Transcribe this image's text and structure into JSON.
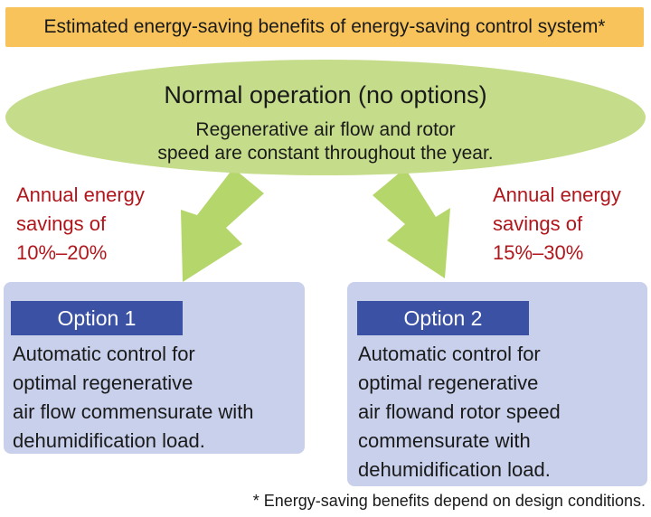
{
  "header": {
    "title": "Estimated energy-saving benefits of energy-saving control system*"
  },
  "normal": {
    "title": "Normal operation (no options)",
    "desc_line1": "Regenerative air flow and rotor",
    "desc_line2": "speed are constant throughout the year."
  },
  "savings_left": {
    "line1": "Annual energy",
    "line2": "savings of",
    "line3": "10%–20%"
  },
  "savings_right": {
    "line1": "Annual energy",
    "line2": "savings of",
    "line3": "15%–30%"
  },
  "option1": {
    "label": "Option 1",
    "text": "Automatic control for\noptimal regenerative\nair flow commensurate with\ndehumidification load."
  },
  "option2": {
    "label": "Option 2",
    "text": "Automatic control for\noptimal regenerative\nair flowand rotor speed\ncommensurate with\ndehumidification load."
  },
  "footnote": "* Energy-saving benefits depend on design conditions.",
  "colors": {
    "banner": "#f7c35a",
    "ellipse": "#c5dc8b",
    "arrow": "#b5d66b",
    "savings_text": "#b0161c",
    "option_box": "#c8d0ec",
    "option_label": "#3b52a4"
  }
}
